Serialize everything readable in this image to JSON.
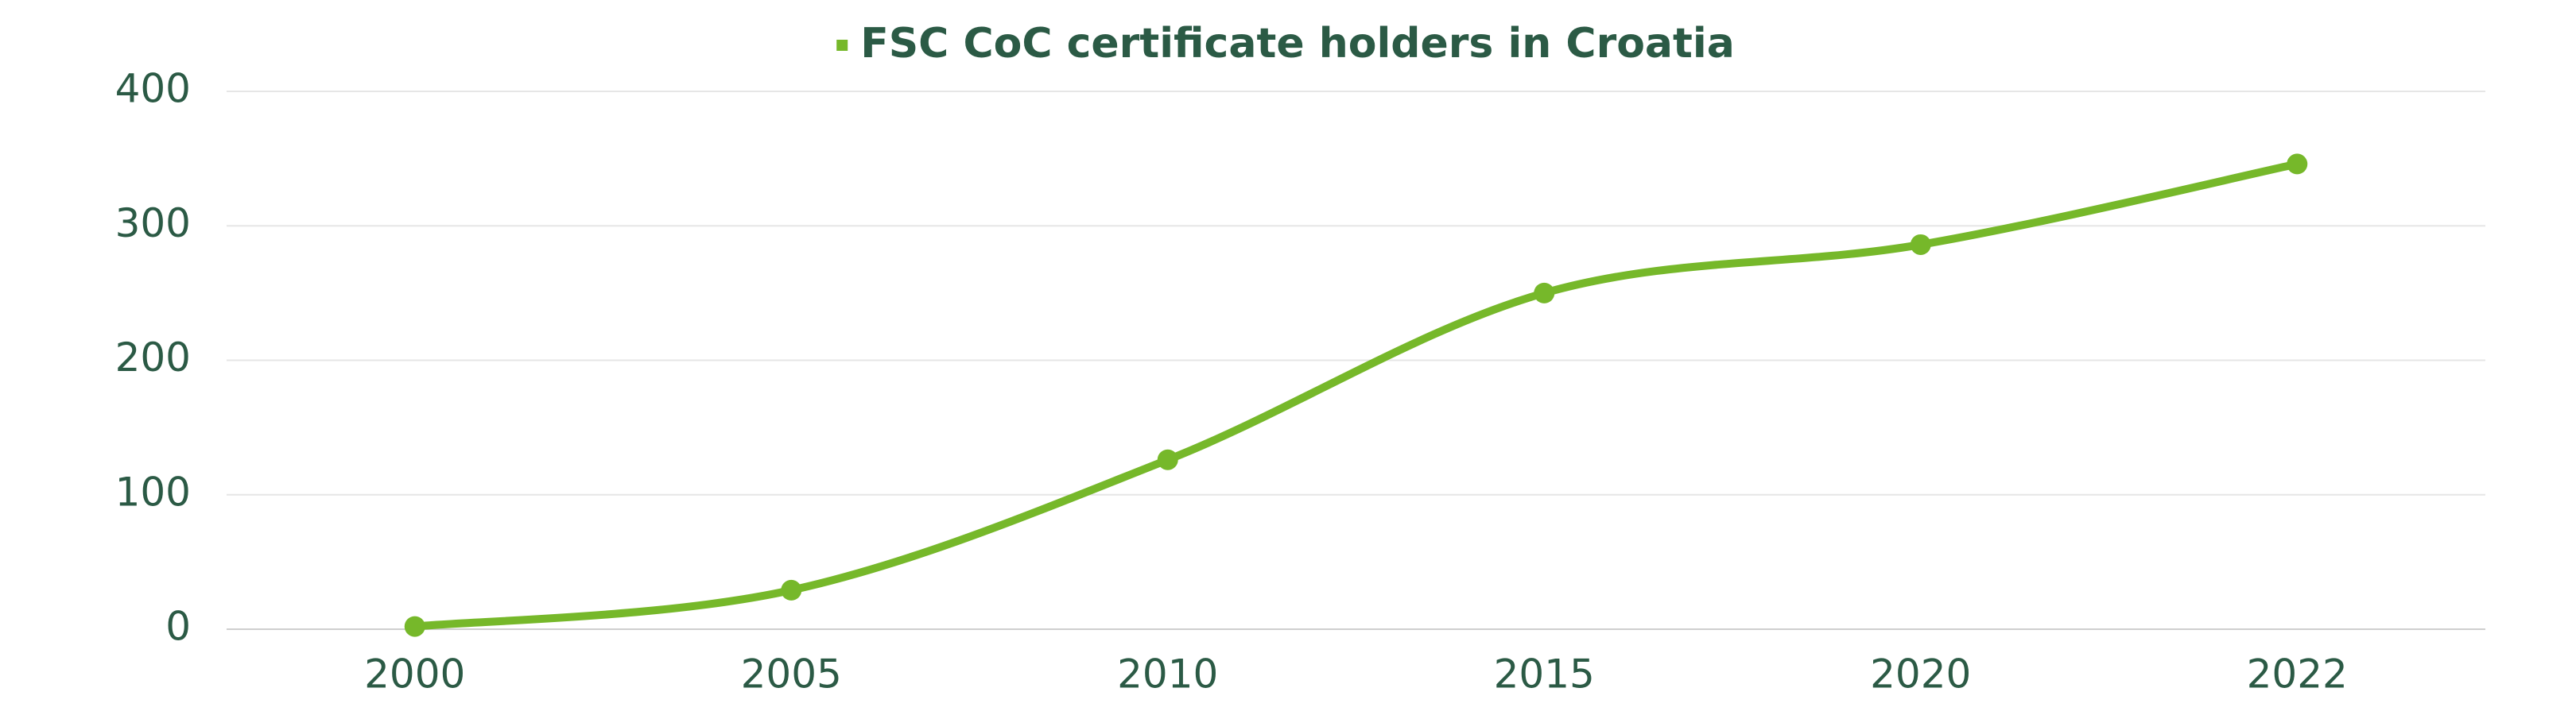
{
  "chart_data": {
    "type": "line",
    "categories": [
      "2000",
      "2005",
      "2010",
      "2015",
      "2020",
      "2022"
    ],
    "series": [
      {
        "name": "FSC CoC certificate holders in Croatia",
        "color": "#76b82a",
        "values": [
          2,
          29,
          126,
          250,
          286,
          346
        ]
      }
    ],
    "ylim": [
      0,
      400
    ],
    "yticks": [
      0,
      100,
      200,
      300,
      400
    ],
    "grid": true,
    "legend": "top"
  }
}
